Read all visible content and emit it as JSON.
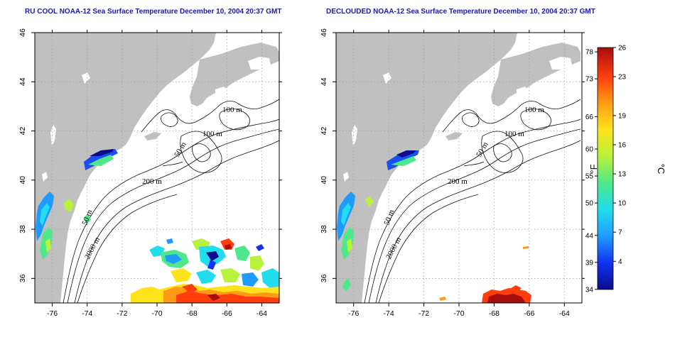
{
  "panels": [
    {
      "id": "rucool",
      "title": "RU COOL NOAA-12 Sea Surface Temperature December 10, 2004 20:37 GMT"
    },
    {
      "id": "declouded",
      "title": "DECLOUDED NOAA-12 Sea Surface Temperature December 10, 2004 20:37 GMT"
    }
  ],
  "map": {
    "lon_range": [
      -77,
      -63
    ],
    "lat_range": [
      35,
      46
    ],
    "lon_ticks": [
      "-76",
      "-74",
      "-72",
      "-70",
      "-68",
      "-66",
      "-64"
    ],
    "lat_ticks": [
      "36",
      "38",
      "40",
      "42",
      "44",
      "46"
    ],
    "lon_tick_values": [
      -76,
      -74,
      -72,
      -70,
      -68,
      -66,
      -64
    ],
    "lat_tick_values": [
      36,
      38,
      40,
      42,
      44,
      46
    ],
    "grid": "dotted",
    "land_color": "#c0c0c0",
    "ocean_color": "#ffffff"
  },
  "contour_labels": [
    "100 m",
    "100 m",
    "50 m",
    "200 m",
    "50 m",
    "2000 m"
  ],
  "colorbar": {
    "fahrenheit_ticks": [
      "78",
      "73",
      "66",
      "60",
      "55",
      "50",
      "44",
      "39",
      "34"
    ],
    "fahrenheit_values": [
      78,
      73,
      66,
      60,
      55,
      50,
      44,
      39,
      34
    ],
    "celsius_ticks": [
      "26",
      "23",
      "19",
      "16",
      "13",
      "10",
      "7",
      "4"
    ],
    "celsius_values": [
      26,
      23,
      19,
      16,
      13,
      10,
      7,
      4
    ],
    "celsius_range": [
      1.1,
      26
    ],
    "fahrenheit_unit": "°F",
    "celsius_unit": "°C",
    "colors": [
      "#0b0b8c",
      "#1133ee",
      "#1f9bff",
      "#22ddee",
      "#4ee88a",
      "#b9f23a",
      "#ffe31a",
      "#ff9c14",
      "#ff3d0d",
      "#a80d0d"
    ]
  }
}
